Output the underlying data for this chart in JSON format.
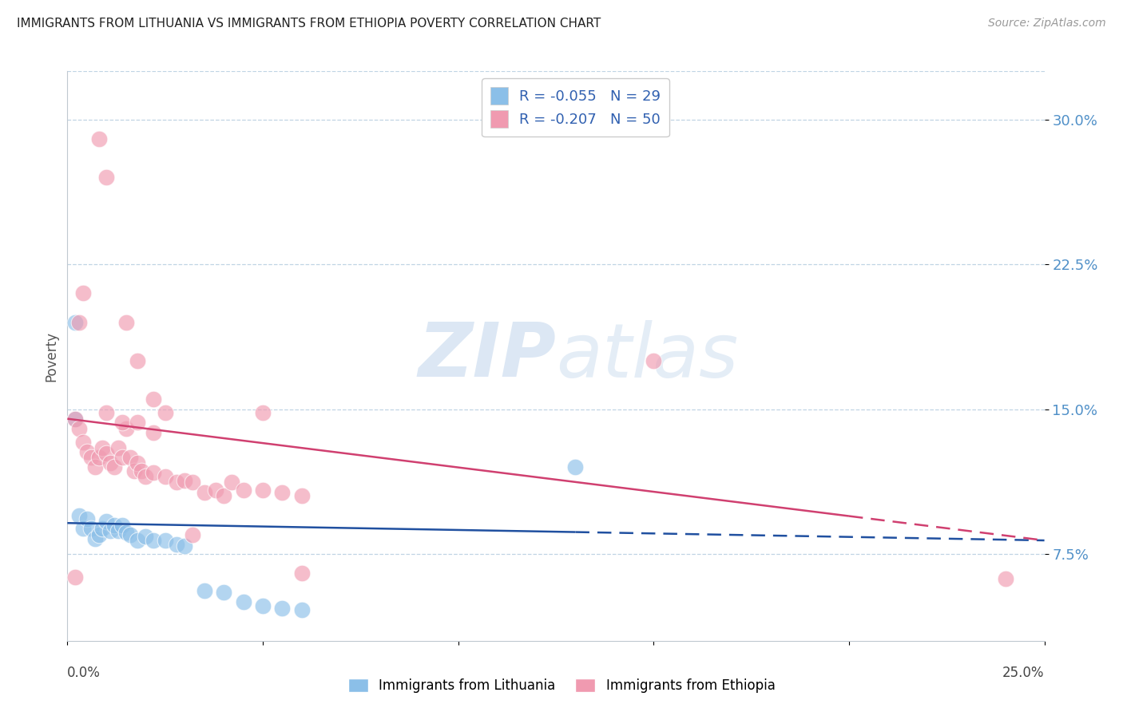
{
  "title": "IMMIGRANTS FROM LITHUANIA VS IMMIGRANTS FROM ETHIOPIA POVERTY CORRELATION CHART",
  "source": "Source: ZipAtlas.com",
  "ylabel": "Poverty",
  "ytick_labels": [
    "7.5%",
    "15.0%",
    "22.5%",
    "30.0%"
  ],
  "ytick_values": [
    0.075,
    0.15,
    0.225,
    0.3
  ],
  "xlim": [
    0.0,
    0.25
  ],
  "ylim": [
    0.03,
    0.325
  ],
  "watermark_zip": "ZIP",
  "watermark_atlas": "atlas",
  "legend_label_blue": "Immigrants from Lithuania",
  "legend_label_pink": "Immigrants from Ethiopia",
  "legend_r_blue": "R = -0.055",
  "legend_n_blue": "N = 29",
  "legend_r_pink": "R = -0.207",
  "legend_n_pink": "N = 50",
  "scatter_lithuania": [
    [
      0.002,
      0.145
    ],
    [
      0.003,
      0.095
    ],
    [
      0.004,
      0.088
    ],
    [
      0.005,
      0.093
    ],
    [
      0.006,
      0.088
    ],
    [
      0.007,
      0.083
    ],
    [
      0.008,
      0.085
    ],
    [
      0.009,
      0.088
    ],
    [
      0.01,
      0.092
    ],
    [
      0.011,
      0.087
    ],
    [
      0.012,
      0.09
    ],
    [
      0.013,
      0.087
    ],
    [
      0.014,
      0.09
    ],
    [
      0.015,
      0.086
    ],
    [
      0.016,
      0.085
    ],
    [
      0.018,
      0.082
    ],
    [
      0.02,
      0.084
    ],
    [
      0.022,
      0.082
    ],
    [
      0.025,
      0.082
    ],
    [
      0.028,
      0.08
    ],
    [
      0.03,
      0.079
    ],
    [
      0.035,
      0.056
    ],
    [
      0.04,
      0.055
    ],
    [
      0.045,
      0.05
    ],
    [
      0.05,
      0.048
    ],
    [
      0.055,
      0.047
    ],
    [
      0.06,
      0.046
    ],
    [
      0.13,
      0.12
    ],
    [
      0.002,
      0.195
    ]
  ],
  "scatter_ethiopia": [
    [
      0.002,
      0.145
    ],
    [
      0.003,
      0.14
    ],
    [
      0.004,
      0.133
    ],
    [
      0.005,
      0.128
    ],
    [
      0.006,
      0.125
    ],
    [
      0.007,
      0.12
    ],
    [
      0.008,
      0.125
    ],
    [
      0.009,
      0.13
    ],
    [
      0.01,
      0.127
    ],
    [
      0.011,
      0.122
    ],
    [
      0.012,
      0.12
    ],
    [
      0.013,
      0.13
    ],
    [
      0.014,
      0.125
    ],
    [
      0.015,
      0.14
    ],
    [
      0.016,
      0.125
    ],
    [
      0.017,
      0.118
    ],
    [
      0.018,
      0.122
    ],
    [
      0.019,
      0.118
    ],
    [
      0.02,
      0.115
    ],
    [
      0.022,
      0.117
    ],
    [
      0.025,
      0.115
    ],
    [
      0.028,
      0.112
    ],
    [
      0.03,
      0.113
    ],
    [
      0.032,
      0.112
    ],
    [
      0.035,
      0.107
    ],
    [
      0.038,
      0.108
    ],
    [
      0.04,
      0.105
    ],
    [
      0.042,
      0.112
    ],
    [
      0.045,
      0.108
    ],
    [
      0.05,
      0.108
    ],
    [
      0.055,
      0.107
    ],
    [
      0.06,
      0.105
    ],
    [
      0.003,
      0.195
    ],
    [
      0.004,
      0.21
    ],
    [
      0.008,
      0.29
    ],
    [
      0.01,
      0.27
    ],
    [
      0.015,
      0.195
    ],
    [
      0.018,
      0.175
    ],
    [
      0.022,
      0.155
    ],
    [
      0.025,
      0.148
    ],
    [
      0.05,
      0.148
    ],
    [
      0.15,
      0.175
    ],
    [
      0.032,
      0.085
    ],
    [
      0.06,
      0.065
    ],
    [
      0.24,
      0.062
    ],
    [
      0.01,
      0.148
    ],
    [
      0.014,
      0.143
    ],
    [
      0.018,
      0.143
    ],
    [
      0.022,
      0.138
    ],
    [
      0.002,
      0.063
    ]
  ],
  "trendline_lithuania": {
    "x_start": 0.0,
    "y_start": 0.091,
    "x_end": 0.25,
    "y_end": 0.082
  },
  "trendline_ethiopia": {
    "x_start": 0.0,
    "y_start": 0.145,
    "x_end": 0.25,
    "y_end": 0.082
  },
  "trendline_lith_solid_end": 0.13,
  "trendline_eth_solid_end": 0.2,
  "color_blue": "#8bbfe8",
  "color_pink": "#f09ab0",
  "color_trendline_blue": "#2050a0",
  "color_trendline_pink": "#d04070",
  "background_color": "#ffffff",
  "grid_color": "#c0d4e4",
  "axis_color": "#c0c8d0"
}
